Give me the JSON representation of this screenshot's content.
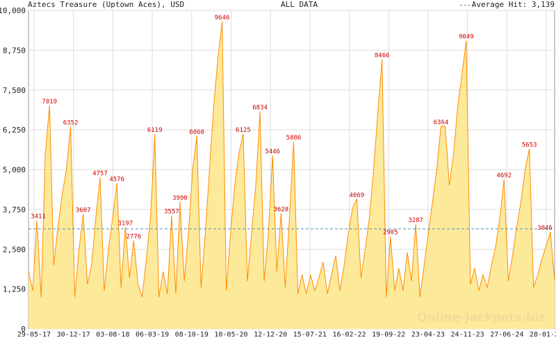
{
  "header": {
    "title": "Aztecs Treasure (Uptown Aces), USD",
    "subtitle": "ALL DATA",
    "legend_label": "Average Hit: 3,139"
  },
  "watermark": "Online-Jackpots.biz",
  "colors": {
    "fill": "#fde99a",
    "line": "#ff8c00",
    "avg": "#4a90b8",
    "peak_label": "#cc0000",
    "grid": "#dddddd"
  },
  "chart_data": {
    "type": "area",
    "title": "Aztecs Treasure (Uptown Aces), USD",
    "subtitle": "ALL DATA",
    "ylim": [
      0,
      10000
    ],
    "yticks": [
      0,
      1250,
      2500,
      3750,
      5000,
      6250,
      7500,
      8750,
      10000
    ],
    "ytick_labels": [
      "0",
      "1,250",
      "2,500",
      "3,750",
      "5,000",
      "6,250",
      "7,500",
      "8,750",
      "10,000"
    ],
    "xticks": [
      "29-05-17",
      "30-12-17",
      "03-08-18",
      "06-03-19",
      "08-10-19",
      "10-05-20",
      "12-12-20",
      "15-07-21",
      "16-02-22",
      "19-09-22",
      "23-04-23",
      "24-11-23",
      "27-06-24",
      "28-01-25"
    ],
    "average": 3139,
    "legend": "top-right",
    "grid": true,
    "peaks": [
      3411,
      7019,
      6352,
      3607,
      4757,
      4576,
      3197,
      2776,
      6119,
      3557,
      3990,
      6060,
      9646,
      6125,
      6834,
      5446,
      3628,
      5886,
      4069,
      8466,
      2905,
      3287,
      6364,
      9049,
      4692,
      5653,
      3046
    ],
    "series": [
      {
        "values": [
          1800,
          1200,
          3411,
          1000,
          5500,
          7019,
          2000,
          3200,
          4200,
          5000,
          6352,
          1000,
          2500,
          3607,
          1400,
          2000,
          3500,
          4757,
          1200,
          2500,
          3500,
          4576,
          1300,
          3197,
          1600,
          2776,
          1400,
          1000,
          2200,
          3500,
          6119,
          1000,
          1800,
          1100,
          3557,
          1100,
          3990,
          1500,
          3000,
          5000,
          6060,
          1300,
          3000,
          5000,
          7000,
          8500,
          9646,
          1200,
          3000,
          4500,
          5500,
          6125,
          1500,
          3000,
          4500,
          6834,
          1500,
          3000,
          5446,
          1800,
          3628,
          1300,
          3500,
          5886,
          1100,
          1700,
          1100,
          1700,
          1200,
          1600,
          2100,
          1100,
          1700,
          2300,
          1200,
          2000,
          3000,
          3800,
          4069,
          1600,
          2500,
          3500,
          5000,
          6800,
          8466,
          1000,
          2905,
          1200,
          1900,
          1200,
          2400,
          1500,
          3287,
          1000,
          2000,
          3000,
          4000,
          5000,
          6364,
          6364,
          4500,
          5500,
          7000,
          8000,
          9049,
          1400,
          1900,
          1200,
          1700,
          1300,
          2000,
          2600,
          3500,
          4692,
          1500,
          2300,
          3200,
          4000,
          5000,
          5653,
          1300,
          1700,
          2200,
          2600,
          3046,
          1500
        ]
      }
    ]
  }
}
